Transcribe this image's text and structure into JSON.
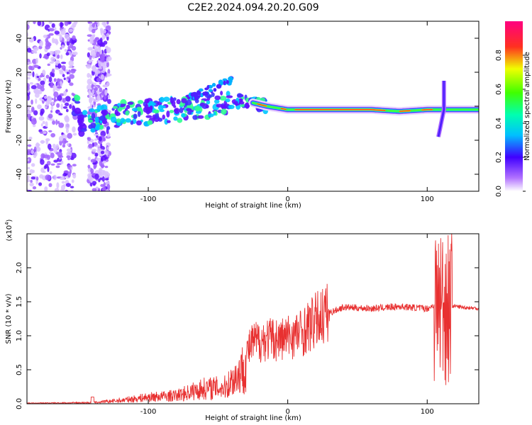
{
  "title": "C2E2.2024.094.20.20.G09",
  "chart_data": [
    {
      "type": "heatmap",
      "xlabel": "Height of straight line (km)",
      "ylabel": "Frequency (Hz)",
      "xlim": [
        -187,
        137
      ],
      "ylim": [
        -50,
        50
      ],
      "xticks": [
        -100,
        0,
        100
      ],
      "yticks": [
        -40,
        -20,
        0,
        20,
        40
      ],
      "colorbar": {
        "label": "Normalized spectral amplitude",
        "range": [
          0,
          1
        ],
        "ticks": [
          0.0,
          0.2,
          0.4,
          0.6,
          0.8
        ]
      },
      "ridge": {
        "description_points": [
          [
            -150,
            -10
          ],
          [
            -120,
            -5
          ],
          [
            -90,
            -3
          ],
          [
            -60,
            0
          ],
          [
            -40,
            3
          ],
          [
            -25,
            2
          ],
          [
            -15,
            0
          ],
          [
            0,
            -2
          ],
          [
            30,
            -2
          ],
          [
            60,
            -2
          ],
          [
            80,
            -3
          ],
          [
            100,
            -2
          ],
          [
            137,
            -2
          ]
        ]
      }
    },
    {
      "type": "line",
      "xlabel": "Height of straight line (km)",
      "ylabel": "SNR (10 * v/v)",
      "yscale_label": "(x10",
      "yscale_exp": "4",
      "xlim": [
        -187,
        137
      ],
      "ylim": [
        0,
        2.5
      ],
      "xticks": [
        -100,
        0,
        100
      ],
      "yticks": [
        0.0,
        0.5,
        1.0,
        1.5,
        2.0
      ],
      "line_color": "#e83030",
      "envelope": [
        [
          -187,
          0.01
        ],
        [
          -140,
          0.02
        ],
        [
          -120,
          0.06
        ],
        [
          -100,
          0.12
        ],
        [
          -80,
          0.15
        ],
        [
          -60,
          0.28
        ],
        [
          -45,
          0.3
        ],
        [
          -35,
          0.55
        ],
        [
          -25,
          0.9
        ],
        [
          -15,
          0.95
        ],
        [
          -5,
          0.95
        ],
        [
          10,
          1.05
        ],
        [
          25,
          1.3
        ],
        [
          40,
          1.42
        ],
        [
          60,
          1.4
        ],
        [
          80,
          1.43
        ],
        [
          100,
          1.4
        ],
        [
          105,
          1.45
        ],
        [
          110,
          1.5
        ],
        [
          115,
          1.45
        ],
        [
          125,
          1.42
        ],
        [
          137,
          1.4
        ]
      ]
    }
  ]
}
